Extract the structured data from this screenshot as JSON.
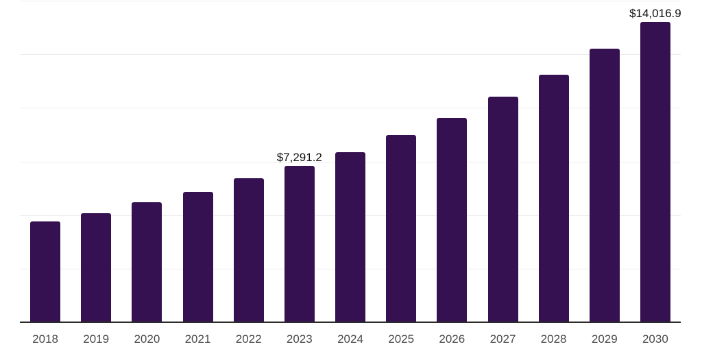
{
  "chart_data": {
    "type": "bar",
    "categories": [
      "2018",
      "2019",
      "2020",
      "2021",
      "2022",
      "2023",
      "2024",
      "2025",
      "2026",
      "2027",
      "2028",
      "2029",
      "2030"
    ],
    "values": [
      4700,
      5100,
      5600,
      6080,
      6725,
      7291.2,
      7940,
      8740,
      9540,
      10530,
      11550,
      12770,
      14016.9
    ],
    "data_labels": [
      {
        "index": 5,
        "text": "$7,291.2"
      },
      {
        "index": 12,
        "text": "$14,016.9"
      }
    ],
    "xlabel": "",
    "ylabel": "",
    "ylim": [
      0,
      15000
    ],
    "gridline_step": 2500,
    "grid": "horizontal",
    "legend": "none",
    "colors": {
      "bar": "#351151",
      "gridline": "#ededed",
      "axis_line": "#2b2b2b",
      "tick_label": "#4a4a4a",
      "data_label": "#101010",
      "background": "#ffffff"
    }
  }
}
